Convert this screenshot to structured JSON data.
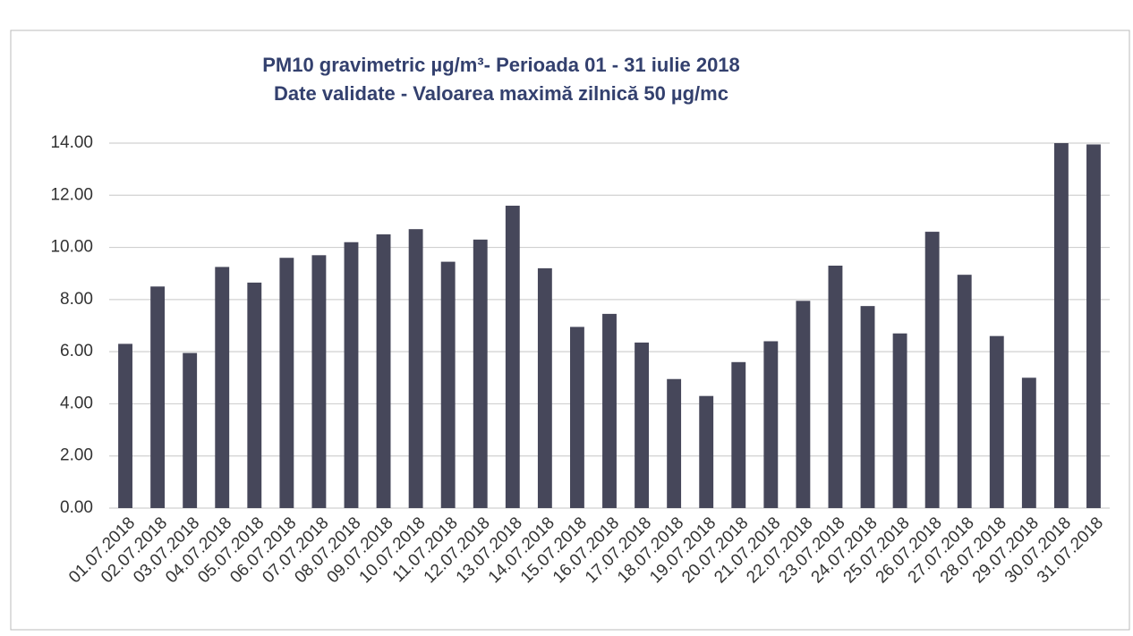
{
  "chart_data": {
    "type": "bar",
    "title": "PM10 gravimetric µg/m³- Perioada 01 - 31 iulie 2018",
    "subtitle": "Date validate -  Valoarea maximă zilnică 50 µg/mc",
    "categories": [
      "01.07.2018",
      "02.07.2018",
      "03.07.2018",
      "04.07.2018",
      "05.07.2018",
      "06.07.2018",
      "07.07.2018",
      "08.07.2018",
      "09.07.2018",
      "10.07.2018",
      "11.07.2018",
      "12.07.2018",
      "13.07.2018",
      "14.07.2018",
      "15.07.2018",
      "16.07.2018",
      "17.07.2018",
      "18.07.2018",
      "19.07.2018",
      "20.07.2018",
      "21.07.2018",
      "22.07.2018",
      "23.07.2018",
      "24.07.2018",
      "25.07.2018",
      "26.07.2018",
      "27.07.2018",
      "28.07.2018",
      "29.07.2018",
      "30.07.2018",
      "31.07.2018"
    ],
    "values": [
      6.3,
      8.5,
      5.95,
      9.25,
      8.65,
      9.6,
      9.7,
      10.2,
      10.5,
      10.7,
      9.45,
      10.3,
      11.6,
      9.2,
      6.95,
      7.45,
      6.35,
      4.95,
      4.3,
      5.6,
      6.4,
      7.95,
      9.3,
      7.75,
      6.7,
      10.6,
      8.95,
      6.6,
      5.0,
      14.0,
      13.95
    ],
    "color": "#46475a",
    "ylim": [
      0,
      14
    ],
    "yticks": [
      {
        "value": 0,
        "label": "0.00"
      },
      {
        "value": 2,
        "label": "2.00"
      },
      {
        "value": 4,
        "label": "4.00"
      },
      {
        "value": 6,
        "label": "6.00"
      },
      {
        "value": 8,
        "label": "8.00"
      },
      {
        "value": 10,
        "label": "10.00"
      },
      {
        "value": 12,
        "label": "12.00"
      },
      {
        "value": 14,
        "label": "14.00"
      }
    ],
    "grid": true
  }
}
